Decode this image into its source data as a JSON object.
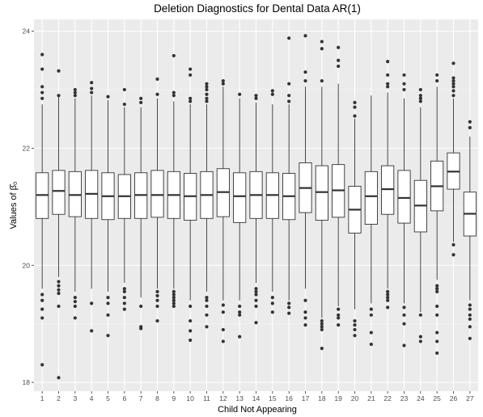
{
  "chart_data": {
    "type": "boxplot",
    "title": "Deletion Diagnostics for Dental Data AR(1)",
    "xlabel": "Child Not Appearing",
    "ylabel": "Values of β̂₀",
    "ylim": [
      17.85,
      24.2
    ],
    "yticks": [
      18,
      20,
      22,
      24
    ],
    "grid": true,
    "legend": "none",
    "colors": {
      "panel": "#ebebeb",
      "grid_major": "#ffffff",
      "box_fill": "#ffffff",
      "box_line": "#333333",
      "outlier": "#333333"
    },
    "categories": [
      "1",
      "2",
      "3",
      "4",
      "5",
      "6",
      "7",
      "8",
      "9",
      "10",
      "11",
      "12",
      "13",
      "14",
      "15",
      "16",
      "17",
      "18",
      "19",
      "20",
      "21",
      "22",
      "23",
      "24",
      "25",
      "26",
      "27"
    ],
    "boxes": [
      {
        "q1": 20.8,
        "median": 21.2,
        "q3": 21.58,
        "whisker_low": 19.6,
        "whisker_high": 22.75,
        "outliers": [
          19.5,
          19.4,
          19.25,
          19.1,
          22.85,
          22.95,
          23.05,
          23.35,
          23.6,
          18.3
        ]
      },
      {
        "q1": 20.87,
        "median": 21.27,
        "q3": 21.62,
        "whisker_low": 19.8,
        "whisker_high": 22.88,
        "outliers": [
          19.72,
          19.65,
          19.58,
          19.52,
          19.3,
          22.9,
          23.32,
          18.08
        ]
      },
      {
        "q1": 20.83,
        "median": 21.2,
        "q3": 21.6,
        "whisker_low": 19.55,
        "whisker_high": 22.85,
        "outliers": [
          19.45,
          19.38,
          19.3,
          19.1,
          22.9,
          22.95,
          23.0
        ]
      },
      {
        "q1": 20.8,
        "median": 21.22,
        "q3": 21.62,
        "whisker_low": 19.6,
        "whisker_high": 22.9,
        "outliers": [
          19.35,
          18.88,
          22.95,
          23.02,
          23.12
        ]
      },
      {
        "q1": 20.78,
        "median": 21.18,
        "q3": 21.58,
        "whisker_low": 19.55,
        "whisker_high": 22.82,
        "outliers": [
          19.45,
          19.35,
          19.15,
          18.8,
          22.88
        ]
      },
      {
        "q1": 20.8,
        "median": 21.18,
        "q3": 21.55,
        "whisker_low": 19.7,
        "whisker_high": 22.7,
        "outliers": [
          19.6,
          19.55,
          19.45,
          19.35,
          19.25,
          22.75,
          23.0
        ]
      },
      {
        "q1": 20.8,
        "median": 21.2,
        "q3": 21.58,
        "whisker_low": 19.45,
        "whisker_high": 22.7,
        "outliers": [
          19.3,
          18.95,
          18.92,
          22.78,
          22.85
        ]
      },
      {
        "q1": 20.82,
        "median": 21.2,
        "q3": 21.62,
        "whisker_low": 19.6,
        "whisker_high": 22.85,
        "outliers": [
          19.55,
          19.48,
          19.4,
          19.3,
          19.05,
          22.92,
          23.18
        ]
      },
      {
        "q1": 20.8,
        "median": 21.2,
        "q3": 21.6,
        "whisker_low": 19.6,
        "whisker_high": 22.8,
        "outliers": [
          19.55,
          19.5,
          19.45,
          19.4,
          19.35,
          19.3,
          22.9,
          22.95,
          23.58
        ]
      },
      {
        "q1": 20.77,
        "median": 21.18,
        "q3": 21.57,
        "whisker_low": 19.4,
        "whisker_high": 22.75,
        "outliers": [
          19.3,
          19.05,
          18.88,
          18.72,
          22.8,
          22.85,
          23.25,
          23.35
        ]
      },
      {
        "q1": 20.8,
        "median": 21.2,
        "q3": 21.6,
        "whisker_low": 19.55,
        "whisker_high": 22.75,
        "outliers": [
          19.45,
          19.4,
          19.3,
          19.15,
          18.95,
          22.8,
          22.85,
          22.92,
          23.0,
          23.05,
          23.1
        ]
      },
      {
        "q1": 20.83,
        "median": 21.25,
        "q3": 21.65,
        "whisker_low": 19.4,
        "whisker_high": 23.05,
        "outliers": [
          19.32,
          19.2,
          18.9,
          18.7,
          23.1,
          23.15
        ]
      },
      {
        "q1": 20.73,
        "median": 21.18,
        "q3": 21.58,
        "whisker_low": 19.4,
        "whisker_high": 22.85,
        "outliers": [
          19.3,
          19.2,
          19.15,
          18.78,
          22.92
        ]
      },
      {
        "q1": 20.8,
        "median": 21.2,
        "q3": 21.6,
        "whisker_low": 19.7,
        "whisker_high": 22.78,
        "outliers": [
          19.6,
          19.55,
          19.5,
          19.4,
          19.3,
          19.02,
          22.85,
          22.9
        ]
      },
      {
        "q1": 20.8,
        "median": 21.2,
        "q3": 21.58,
        "whisker_low": 19.55,
        "whisker_high": 22.75,
        "outliers": [
          19.45,
          19.35,
          19.2,
          22.92,
          22.98
        ]
      },
      {
        "q1": 20.78,
        "median": 21.18,
        "q3": 21.57,
        "whisker_low": 19.4,
        "whisker_high": 22.75,
        "outliers": [
          19.35,
          19.28,
          19.18,
          22.8,
          22.9,
          23.1,
          23.88
        ]
      },
      {
        "q1": 20.9,
        "median": 21.32,
        "q3": 21.75,
        "whisker_low": 19.6,
        "whisker_high": 23.05,
        "outliers": [
          19.4,
          19.2,
          19.1,
          18.98,
          23.15,
          23.3,
          23.92
        ]
      },
      {
        "q1": 20.77,
        "median": 21.25,
        "q3": 21.7,
        "whisker_low": 19.1,
        "whisker_high": 23.05,
        "outliers": [
          19.05,
          19.0,
          18.95,
          18.9,
          18.58,
          23.15,
          23.7,
          23.82
        ]
      },
      {
        "q1": 20.82,
        "median": 21.28,
        "q3": 21.72,
        "whisker_low": 19.3,
        "whisker_high": 23.1,
        "outliers": [
          19.25,
          19.15,
          19.1,
          18.98,
          23.4,
          23.5,
          23.72
        ]
      },
      {
        "q1": 20.55,
        "median": 20.95,
        "q3": 21.35,
        "whisker_low": 19.25,
        "whisker_high": 22.5,
        "outliers": [
          19.05,
          18.98,
          18.9,
          18.8,
          22.55,
          22.7,
          22.78
        ]
      },
      {
        "q1": 20.7,
        "median": 21.18,
        "q3": 21.6,
        "whisker_low": 19.35,
        "whisker_high": 22.9,
        "outliers": [
          19.25,
          19.15,
          18.85,
          18.65
        ]
      },
      {
        "q1": 20.87,
        "median": 21.3,
        "q3": 21.7,
        "whisker_low": 19.6,
        "whisker_high": 22.95,
        "outliers": [
          19.55,
          19.5,
          19.45,
          19.4,
          19.28,
          23.05,
          23.1,
          23.25,
          23.48
        ]
      },
      {
        "q1": 20.72,
        "median": 21.15,
        "q3": 21.62,
        "whisker_low": 19.35,
        "whisker_high": 22.85,
        "outliers": [
          19.28,
          19.15,
          19.0,
          18.63,
          23.0,
          23.1,
          23.25
        ]
      },
      {
        "q1": 20.57,
        "median": 21.02,
        "q3": 21.45,
        "whisker_low": 19.2,
        "whisker_high": 22.7,
        "outliers": [
          19.15,
          18.78,
          18.7,
          22.8,
          22.85,
          22.9,
          23.0
        ]
      },
      {
        "q1": 20.93,
        "median": 21.35,
        "q3": 21.78,
        "whisker_low": 19.75,
        "whisker_high": 23.05,
        "outliers": [
          19.65,
          19.6,
          19.55,
          19.3,
          19.15,
          18.85,
          18.7,
          18.5,
          23.15,
          23.25
        ]
      },
      {
        "q1": 21.3,
        "median": 21.6,
        "q3": 21.92,
        "whisker_low": 20.4,
        "whisker_high": 22.85,
        "outliers": [
          20.35,
          20.18,
          22.9,
          22.98,
          23.05,
          23.1,
          23.15,
          23.2,
          23.45
        ]
      },
      {
        "q1": 20.5,
        "median": 20.88,
        "q3": 21.25,
        "whisker_low": 19.4,
        "whisker_high": 22.2,
        "outliers": [
          19.32,
          19.25,
          19.15,
          19.08,
          18.95,
          18.75,
          22.35,
          22.45
        ]
      }
    ]
  }
}
